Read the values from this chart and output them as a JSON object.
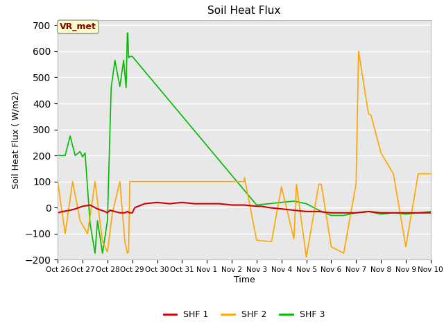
{
  "title": "Soil Heat Flux",
  "ylabel": "Soil Heat Flux ( W/m2)",
  "xlabel": "Time",
  "ylim": [
    -200,
    720
  ],
  "yticks": [
    -200,
    -100,
    0,
    100,
    200,
    300,
    400,
    500,
    600,
    700
  ],
  "bg_color": "#e8e8e8",
  "legend_label": "VR_met",
  "series_labels": [
    "SHF 1",
    "SHF 2",
    "SHF 3"
  ],
  "series_colors": [
    "#cc0000",
    "#ffa500",
    "#00bb00"
  ],
  "x_tick_labels": [
    "Oct 26",
    "Oct 27",
    "Oct 28",
    "Oct 29",
    "Oct 30",
    "Oct 31",
    "Nov 1",
    "Nov 2",
    "Nov 3",
    "Nov 4",
    "Nov 5",
    "Nov 6",
    "Nov 7",
    "Nov 8",
    "Nov 9",
    "Nov 10"
  ],
  "shf1_x": [
    0,
    0.2,
    0.5,
    0.7,
    1.0,
    1.3,
    1.6,
    1.9,
    2.0,
    2.1,
    2.3,
    2.5,
    2.7,
    2.8,
    2.9,
    3.0,
    3.1,
    3.5,
    4.0,
    4.5,
    5.0,
    5.5,
    6.0,
    6.5,
    7.0,
    7.5,
    8.0,
    8.2,
    8.5,
    9.0,
    9.5,
    10.0,
    10.5,
    11.0,
    11.5,
    12.0,
    12.5,
    13.0,
    13.5,
    14.0,
    14.5,
    15.0
  ],
  "shf1_y": [
    -20,
    -15,
    -10,
    -5,
    5,
    10,
    -5,
    -15,
    -20,
    -10,
    -15,
    -20,
    -20,
    -15,
    -20,
    -20,
    0,
    15,
    20,
    15,
    20,
    15,
    15,
    15,
    10,
    10,
    5,
    5,
    0,
    -5,
    -10,
    -15,
    -15,
    -20,
    -20,
    -20,
    -15,
    -20,
    -20,
    -20,
    -20,
    -20
  ],
  "shf2_x": [
    0,
    0.3,
    0.6,
    0.9,
    1.2,
    1.5,
    1.8,
    2.0,
    2.2,
    2.5,
    2.7,
    2.8,
    2.85,
    2.9,
    3.0,
    3.0,
    4.0,
    5.0,
    6.0,
    7.0,
    7.5,
    7.51,
    8.0,
    8.5,
    8.6,
    9.0,
    9.5,
    9.6,
    10.0,
    10.5,
    10.6,
    11.0,
    11.5,
    12.0,
    12.1,
    12.5,
    12.6,
    13.0,
    13.5,
    14.0,
    14.5,
    15.0
  ],
  "shf2_y": [
    100,
    -100,
    100,
    -50,
    -100,
    100,
    -130,
    -170,
    -20,
    100,
    -130,
    -175,
    -170,
    100,
    100,
    100,
    100,
    100,
    100,
    100,
    100,
    115,
    -125,
    -130,
    -130,
    80,
    -120,
    90,
    -190,
    90,
    90,
    -150,
    -175,
    90,
    600,
    360,
    355,
    210,
    130,
    -150,
    130,
    130
  ],
  "shf3_x": [
    0,
    0.15,
    0.3,
    0.5,
    0.7,
    0.9,
    1.0,
    1.1,
    1.3,
    1.5,
    1.6,
    1.8,
    2.0,
    2.15,
    2.3,
    2.5,
    2.65,
    2.75,
    2.8,
    2.82,
    2.85,
    2.9,
    3.0,
    8.0,
    9.0,
    9.5,
    10.0,
    10.5,
    11.0,
    11.5,
    12.0,
    12.5,
    13.0,
    13.5,
    14.0,
    14.5,
    15.0
  ],
  "shf3_y": [
    200,
    200,
    200,
    275,
    200,
    215,
    195,
    210,
    -60,
    -175,
    -50,
    -175,
    -50,
    460,
    565,
    465,
    565,
    460,
    670,
    670,
    575,
    580,
    580,
    10,
    20,
    25,
    15,
    -10,
    -30,
    -30,
    -20,
    -15,
    -25,
    -20,
    -25,
    -20,
    -15
  ]
}
